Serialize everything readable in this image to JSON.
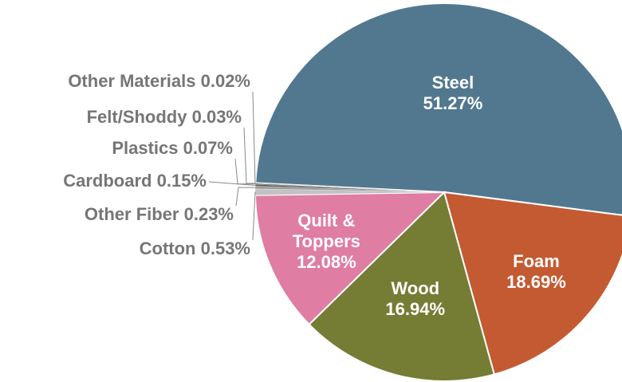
{
  "chart_data": {
    "type": "pie",
    "categories": [
      "Steel",
      "Foam",
      "Wood",
      "Quilt & Toppers",
      "Cotton",
      "Other Fiber",
      "Cardboard",
      "Plastics",
      "Felt/Shoddy",
      "Other Materials"
    ],
    "values": [
      51.27,
      18.69,
      16.94,
      12.08,
      0.53,
      0.23,
      0.15,
      0.07,
      0.03,
      0.02
    ],
    "value_labels": [
      "51.27%",
      "18.69%",
      "16.94%",
      "12.08%",
      "0.53%",
      "0.23%",
      "0.15%",
      "0.07%",
      "0.03%",
      "0.02%"
    ],
    "colors": [
      "#52788f",
      "#c45a32",
      "#757c34",
      "#df7da3",
      "#c2c2c2",
      "#9c9c9c",
      "#5a5a5a",
      "#383838",
      "#262626",
      "#111111"
    ]
  }
}
